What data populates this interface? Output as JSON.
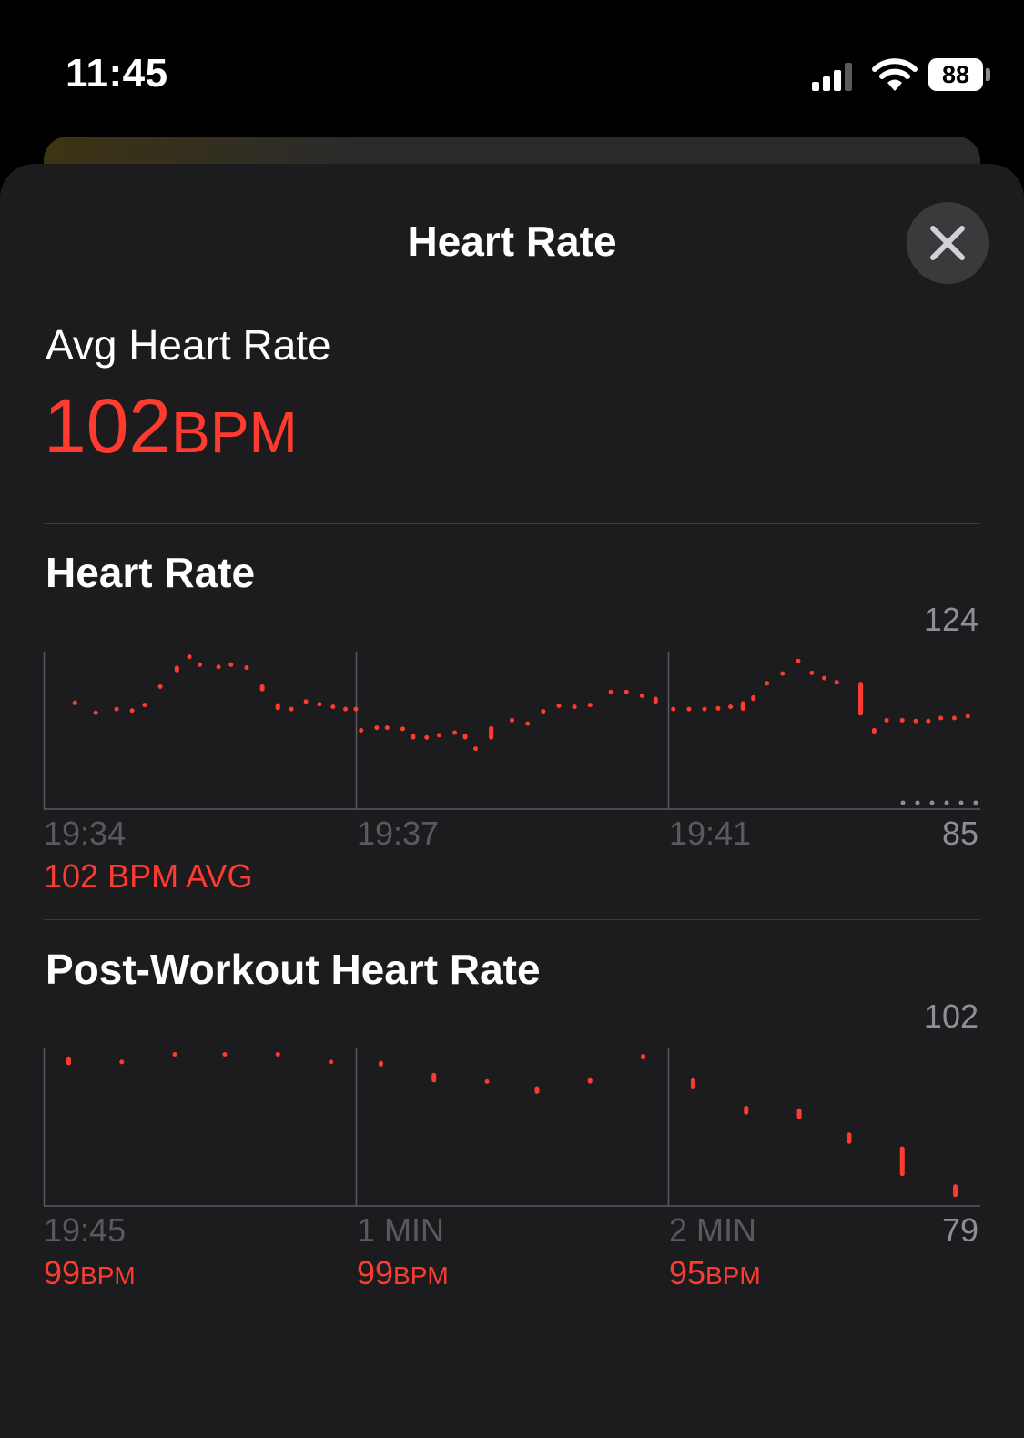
{
  "status_bar": {
    "time": "11:45",
    "battery": "88"
  },
  "sheet": {
    "title": "Heart Rate"
  },
  "average": {
    "label": "Avg Heart Rate",
    "value": "102",
    "unit": "BPM"
  },
  "heart_rate_section": {
    "title": "Heart Rate",
    "y_max_label": "124",
    "y_min_label": "85",
    "time_labels": [
      "19:34",
      "19:37",
      "19:41"
    ],
    "summary": "102 BPM AVG"
  },
  "post_workout_section": {
    "title": "Post-Workout Heart Rate",
    "y_max_label": "102",
    "y_min_label": "79",
    "time_labels": [
      "19:45",
      "1 MIN",
      "2 MIN"
    ],
    "readings": [
      {
        "value": "99",
        "unit": "BPM"
      },
      {
        "value": "99",
        "unit": "BPM"
      },
      {
        "value": "95",
        "unit": "BPM"
      }
    ]
  },
  "colors": {
    "accent": "#ff3b30",
    "sheet_bg": "#1c1c1e",
    "grid": "#5a5a5e"
  },
  "icons": [
    "signal-icon",
    "wifi-icon",
    "close-icon"
  ],
  "chart_data": [
    {
      "type": "scatter",
      "title": "Heart Rate",
      "x_unit": "minutes",
      "ylim": [
        85,
        124
      ],
      "x_tick_labels": [
        "19:34",
        "19:37",
        "19:41"
      ],
      "grid": true,
      "series": [
        {
          "points": [
            [
              0.3,
              111.1,
              112.4
            ],
            [
              0.5,
              109.2,
              109.2
            ],
            [
              0.7,
              110.2,
              110.2
            ],
            [
              0.85,
              109.6,
              109.8
            ],
            [
              0.97,
              111.1,
              111.3
            ],
            [
              1.12,
              115.2,
              116.2
            ],
            [
              1.28,
              119.9,
              121.7
            ],
            [
              1.4,
              123.6,
              124.2
            ],
            [
              1.5,
              122.1,
              122.1
            ],
            [
              1.68,
              121.5,
              121.5
            ],
            [
              1.8,
              121.5,
              122.1
            ],
            [
              1.95,
              121.3,
              121.3
            ],
            [
              2.1,
              114.8,
              116.7
            ],
            [
              2.25,
              109.8,
              111.7
            ],
            [
              2.38,
              109.8,
              110.2
            ],
            [
              2.52,
              112.0,
              112.2
            ],
            [
              2.65,
              111.5,
              111.5
            ],
            [
              2.78,
              110.8,
              110.8
            ],
            [
              2.9,
              110.2,
              110.2
            ],
            [
              3.0,
              109.9,
              110.2
            ],
            [
              3.05,
              103.5,
              104.5
            ],
            [
              3.2,
              104.9,
              105.2
            ],
            [
              3.3,
              104.8,
              105.2
            ],
            [
              3.45,
              103.9,
              104.9
            ],
            [
              3.55,
              101.9,
              103.5
            ],
            [
              3.68,
              101.8,
              102.6
            ],
            [
              3.8,
              102.8,
              103.2
            ],
            [
              3.95,
              103.6,
              103.9
            ],
            [
              4.05,
              101.9,
              103.5
            ],
            [
              4.15,
              99.4,
              99.6
            ],
            [
              4.3,
              101.9,
              105.5
            ],
            [
              4.5,
              107.0,
              107.2
            ],
            [
              4.65,
              106.1,
              106.3
            ],
            [
              4.8,
              109.4,
              109.6
            ],
            [
              4.95,
              110.2,
              111.1
            ],
            [
              5.1,
              110.8,
              110.8
            ],
            [
              5.25,
              111.1,
              111.3
            ],
            [
              5.45,
              114.4,
              114.8
            ],
            [
              5.6,
              114.4,
              114.8
            ],
            [
              5.75,
              113.6,
              113.8
            ],
            [
              5.88,
              111.5,
              113.4
            ],
            [
              6.05,
              110.2,
              110.2
            ],
            [
              6.2,
              110.2,
              110.2
            ],
            [
              6.35,
              110.2,
              110.2
            ],
            [
              6.48,
              110.2,
              110.4
            ],
            [
              6.6,
              110.0,
              110.8
            ],
            [
              6.72,
              109.6,
              112.2
            ],
            [
              6.82,
              112.2,
              113.8
            ],
            [
              6.95,
              115.9,
              117.1
            ],
            [
              7.1,
              119.5,
              119.7
            ],
            [
              7.25,
              122.3,
              123.1
            ],
            [
              7.38,
              119.1,
              119.9
            ],
            [
              7.5,
              118.5,
              118.5
            ],
            [
              7.62,
              117.0,
              117.4
            ],
            [
              7.85,
              108.3,
              117.4
            ],
            [
              7.98,
              103.5,
              105.0
            ],
            [
              8.1,
              107.0,
              107.2
            ],
            [
              8.25,
              107.0,
              107.2
            ],
            [
              8.38,
              106.8,
              107.0
            ],
            [
              8.5,
              106.6,
              107.0
            ],
            [
              8.62,
              107.4,
              107.8
            ],
            [
              8.75,
              107.4,
              107.8
            ],
            [
              8.88,
              108.3,
              108.3
            ]
          ]
        }
      ]
    },
    {
      "type": "scatter",
      "title": "Post-Workout Heart Rate",
      "x_unit": "minutes",
      "ylim": [
        79,
        102
      ],
      "x_tick_labels": [
        "19:45",
        "1 MIN",
        "2 MIN"
      ],
      "grid": true,
      "series": [
        {
          "points": [
            [
              0.08,
              100.2,
              101.6
            ],
            [
              0.25,
              100.6,
              100.8
            ],
            [
              0.42,
              101.3,
              102.0
            ],
            [
              0.58,
              101.3,
              102.0
            ],
            [
              0.75,
              101.8,
              102.0
            ],
            [
              0.92,
              100.6,
              100.8
            ],
            [
              1.08,
              100.0,
              100.9
            ],
            [
              1.25,
              97.5,
              99.0
            ],
            [
              1.42,
              97.5,
              97.7
            ],
            [
              1.58,
              95.7,
              96.9
            ],
            [
              1.75,
              97.3,
              98.3
            ],
            [
              1.92,
              101.1,
              102.0
            ],
            [
              2.08,
              96.5,
              98.3
            ],
            [
              2.25,
              92.4,
              93.8
            ],
            [
              2.42,
              91.7,
              93.4
            ],
            [
              2.58,
              87.8,
              89.6
            ],
            [
              2.75,
              82.7,
              87.4
            ],
            [
              2.92,
              79.4,
              81.4
            ]
          ]
        }
      ]
    }
  ]
}
